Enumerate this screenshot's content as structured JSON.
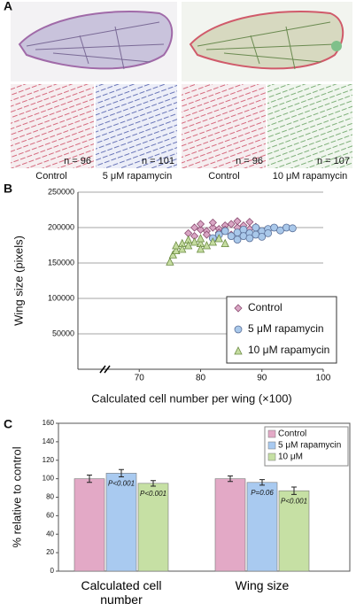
{
  "panel_a": {
    "panel_label": "A",
    "tiles": [
      {
        "caption": "Control",
        "n": "n = 96"
      },
      {
        "caption": "5 μM rapamycin",
        "n": "n = 101"
      },
      {
        "caption": "Control",
        "n": "n = 96"
      },
      {
        "caption": "10 μM rapamycin",
        "n": "n = 107"
      }
    ]
  },
  "chart_data": [
    {
      "type": "scatter",
      "panel_label": "B",
      "x_label": "Calculated cell number per wing (×100)",
      "y_label": "Wing size (pixels)",
      "xlim": [
        60,
        100
      ],
      "xticks": [
        70,
        80,
        90,
        100
      ],
      "ylim": [
        0,
        250000
      ],
      "yticks": [
        50000,
        100000,
        150000,
        200000,
        250000
      ],
      "grid": true,
      "legend": "lower right",
      "series": [
        {
          "name": "Control",
          "color": "#d9a6c4",
          "marker": "diamond",
          "x": [
            78,
            79,
            79,
            80,
            80,
            81,
            81,
            82,
            82,
            83,
            83,
            84,
            84,
            85,
            85,
            86,
            86,
            87,
            87,
            88,
            88,
            89
          ],
          "values": [
            192000,
            200000,
            188000,
            197000,
            205000,
            195000,
            190000,
            200000,
            207000,
            198000,
            193000,
            203000,
            197000,
            205000,
            190000,
            200000,
            209000,
            196000,
            203000,
            208000,
            198000,
            201000
          ]
        },
        {
          "name": "5 μM rapamycin",
          "color": "#a9c8ea",
          "marker": "circle",
          "x": [
            82,
            83,
            84,
            85,
            86,
            86,
            87,
            87,
            88,
            88,
            89,
            89,
            90,
            90,
            91,
            91,
            92,
            93,
            94,
            95
          ],
          "values": [
            185000,
            190000,
            195000,
            188000,
            183000,
            193000,
            197000,
            188000,
            192000,
            185000,
            200000,
            190000,
            195000,
            187000,
            198000,
            192000,
            200000,
            196000,
            200000,
            199000
          ]
        },
        {
          "name": "10 μM rapamycin",
          "color": "#c5dca0",
          "marker": "triangle",
          "x": [
            75,
            75.5,
            76,
            76,
            77,
            77,
            78,
            78,
            79,
            80,
            80,
            81,
            82,
            83,
            84,
            80
          ],
          "values": [
            152000,
            162000,
            168000,
            175000,
            178000,
            170000,
            183000,
            175000,
            180000,
            178000,
            185000,
            175000,
            180000,
            185000,
            178000,
            170000
          ]
        }
      ]
    },
    {
      "type": "bar",
      "panel_label": "C",
      "y_label": "% relative to control",
      "categories": [
        "Calculated cell number",
        "Wing size"
      ],
      "ylim": [
        0,
        160
      ],
      "yticks": [
        0,
        20,
        40,
        60,
        80,
        100,
        120,
        140,
        160
      ],
      "legend": "upper right",
      "series": [
        {
          "name": "Control",
          "color": "#e3a9c6",
          "values": [
            100,
            100
          ],
          "errors": [
            4,
            3
          ]
        },
        {
          "name": "5 μM rapamycin",
          "color": "#a9caf0",
          "values": [
            106,
            96
          ],
          "errors": [
            4,
            3
          ],
          "p_labels": [
            "P<0.001",
            "P=0.06"
          ]
        },
        {
          "name": "10 μM",
          "color": "#c6e0a4",
          "values": [
            95,
            87
          ],
          "errors": [
            3,
            4
          ],
          "p_labels": [
            "P<0.001",
            "P<0.001"
          ]
        }
      ]
    }
  ]
}
